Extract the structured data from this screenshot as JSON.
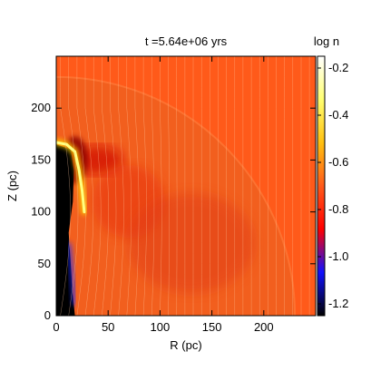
{
  "title": "t =5.64e+06 yrs",
  "colorbar": {
    "label": "log n",
    "ticks": [
      -1.2,
      -1.0,
      -0.8,
      -0.6,
      -0.4,
      -0.2
    ],
    "tick_labels": [
      "-1.2",
      "-1.0",
      "-0.8",
      "-0.6",
      "-0.4",
      "-0.2"
    ],
    "range": [
      -1.25,
      -0.15
    ],
    "colormap": [
      "#000000",
      "#1010ff",
      "#ff0000",
      "#ff5a1a",
      "#ffc010",
      "#ffff70",
      "#ffffff"
    ]
  },
  "colors": {
    "ambient": "#ff5a1a",
    "shell": "#f06020",
    "cavity": "#000000",
    "dense_arc": "#ffff80",
    "field_lines": "#ffc8a0"
  },
  "chart_data": {
    "type": "heatmap",
    "title": "t =5.64e+06 yrs",
    "xlabel": "R (pc)",
    "ylabel": "Z (pc)",
    "xlim": [
      0,
      250
    ],
    "ylim": [
      0,
      250
    ],
    "x_ticks": [
      0,
      50,
      100,
      150,
      200
    ],
    "y_ticks": [
      0,
      50,
      100,
      150,
      200
    ],
    "x_tick_labels": [
      "0",
      "50",
      "100",
      "150",
      "200"
    ],
    "y_tick_labels": [
      "0",
      "50",
      "100",
      "150",
      "200"
    ],
    "value_label": "log n",
    "ambient_log_n": -0.65,
    "features": [
      {
        "name": "outer shell",
        "shape": "quarter-circle arc",
        "radius_pc": 230,
        "log_n": -0.68
      },
      {
        "name": "rarefied cavity",
        "log_n": -1.25,
        "boundary_pc": [
          [
            0,
            165
          ],
          [
            6,
            163
          ],
          [
            14,
            160
          ],
          [
            17,
            140
          ],
          [
            16,
            110
          ],
          [
            12,
            80
          ],
          [
            14,
            50
          ],
          [
            16,
            20
          ],
          [
            18,
            0
          ],
          [
            0,
            0
          ]
        ]
      },
      {
        "name": "dense arc",
        "log_n": -0.2,
        "path_pc": [
          [
            0,
            167
          ],
          [
            10,
            165
          ],
          [
            18,
            158
          ],
          [
            22,
            140
          ],
          [
            25,
            120
          ],
          [
            27,
            100
          ]
        ]
      },
      {
        "name": "low-density channel",
        "log_n": -1.05,
        "path_pc": [
          [
            12,
            70
          ],
          [
            15,
            40
          ],
          [
            18,
            10
          ]
        ]
      }
    ],
    "field_lines": "approximately vertical, spacing ~8 pc, bending outward near the axis",
    "grid": false
  }
}
